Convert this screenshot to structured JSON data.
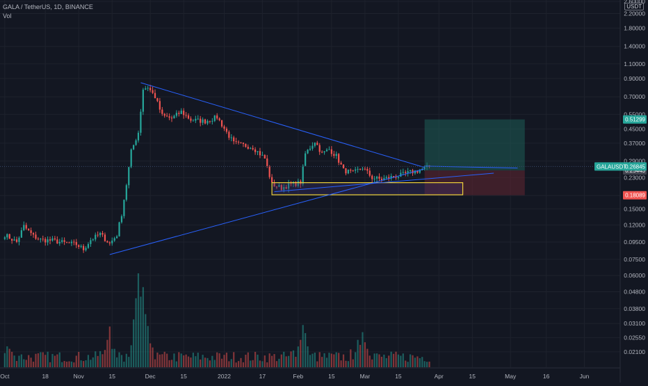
{
  "legend": {
    "symbol_line": "GALA / TetherUS, 1D, BINANCE",
    "volume_label": "Vol"
  },
  "currency_label": "USDT",
  "colors": {
    "background": "#131722",
    "up": "#26a69a",
    "down": "#ef5350",
    "trendline": "#2962ff",
    "box": "#f0d23a",
    "profit_zone": "#1e5c55",
    "loss_zone": "#5c2530",
    "crosshair": "#3a4a6a"
  },
  "badges": {
    "target": "0.51299",
    "current_symbol": "GALAUSDT",
    "current": "0.26845",
    "entry": "0.25443",
    "stop": "0.18089"
  },
  "chart_data": {
    "type": "candlestick",
    "title": "GALA / TetherUS, 1D, BINANCE",
    "y_scale": "log",
    "ylim": [
      0.017,
      2.55
    ],
    "y_ticks": [
      "2.60000",
      "2.20000",
      "1.80000",
      "1.40000",
      "1.10000",
      "0.90000",
      "0.70000",
      "0.55000",
      "0.45000",
      "0.37000",
      "0.29000",
      "0.23000",
      "0.18000",
      "0.15000",
      "0.12000",
      "0.09500",
      "0.07500",
      "0.06000",
      "0.04800",
      "0.03800",
      "0.03100",
      "0.02550",
      "0.02100"
    ],
    "x_ticks": [
      "Oct",
      "18",
      "Nov",
      "15",
      "Dec",
      "15",
      "2022",
      "17",
      "Feb",
      "15",
      "Mar",
      "15",
      "Apr",
      "15",
      "May",
      "16",
      "Jun"
    ],
    "x_tick_days": [
      0,
      17,
      31,
      45,
      61,
      75,
      92,
      108,
      123,
      137,
      151,
      165,
      182,
      196,
      212,
      227,
      243
    ],
    "x_range_days": [
      -2,
      258
    ],
    "last_day": 178,
    "anchors": [
      [
        0,
        0.105
      ],
      [
        5,
        0.095
      ],
      [
        8,
        0.118
      ],
      [
        12,
        0.103
      ],
      [
        15,
        0.098
      ],
      [
        20,
        0.097
      ],
      [
        25,
        0.094
      ],
      [
        30,
        0.092
      ],
      [
        33,
        0.086
      ],
      [
        36,
        0.098
      ],
      [
        40,
        0.106
      ],
      [
        44,
        0.093
      ],
      [
        47,
        0.105
      ],
      [
        49,
        0.14
      ],
      [
        51,
        0.21
      ],
      [
        53,
        0.33
      ],
      [
        56,
        0.43
      ],
      [
        58,
        0.78
      ],
      [
        60,
        0.8
      ],
      [
        63,
        0.7
      ],
      [
        66,
        0.54
      ],
      [
        70,
        0.52
      ],
      [
        74,
        0.57
      ],
      [
        78,
        0.51
      ],
      [
        84,
        0.5
      ],
      [
        89,
        0.53
      ],
      [
        93,
        0.43
      ],
      [
        96,
        0.37
      ],
      [
        100,
        0.36
      ],
      [
        104,
        0.35
      ],
      [
        109,
        0.3
      ],
      [
        112,
        0.21
      ],
      [
        116,
        0.2
      ],
      [
        120,
        0.21
      ],
      [
        124,
        0.215
      ],
      [
        126,
        0.32
      ],
      [
        130,
        0.38
      ],
      [
        133,
        0.32
      ],
      [
        136,
        0.34
      ],
      [
        139,
        0.31
      ],
      [
        142,
        0.255
      ],
      [
        146,
        0.245
      ],
      [
        150,
        0.265
      ],
      [
        154,
        0.23
      ],
      [
        158,
        0.225
      ],
      [
        162,
        0.232
      ],
      [
        166,
        0.238
      ],
      [
        170,
        0.248
      ],
      [
        174,
        0.255
      ],
      [
        178,
        0.268
      ]
    ],
    "volume_scale": 2.1,
    "volume_events": [
      [
        1,
        0.18
      ],
      [
        44,
        0.35
      ],
      [
        56,
        0.98
      ],
      [
        58,
        0.55
      ],
      [
        125,
        0.45
      ],
      [
        150,
        0.42
      ]
    ],
    "trendlines": [
      {
        "from": [
          57,
          0.85
        ],
        "to": [
          176,
          0.265
        ]
      },
      {
        "from": [
          44,
          0.08
        ],
        "to": [
          176,
          0.26
        ]
      },
      {
        "from": [
          113,
          0.19
        ],
        "to": [
          205,
          0.245
        ]
      },
      {
        "from": [
          176,
          0.27
        ],
        "to": [
          215,
          0.263
        ]
      }
    ],
    "range_box": {
      "day_start": 112,
      "day_end": 192,
      "top": 0.215,
      "bottom": 0.182
    },
    "position": {
      "day_start": 176,
      "day_end": 218,
      "entry": 0.25443,
      "target": 0.51299,
      "stop": 0.18089
    },
    "price_lines": {
      "current": 0.26845
    }
  }
}
